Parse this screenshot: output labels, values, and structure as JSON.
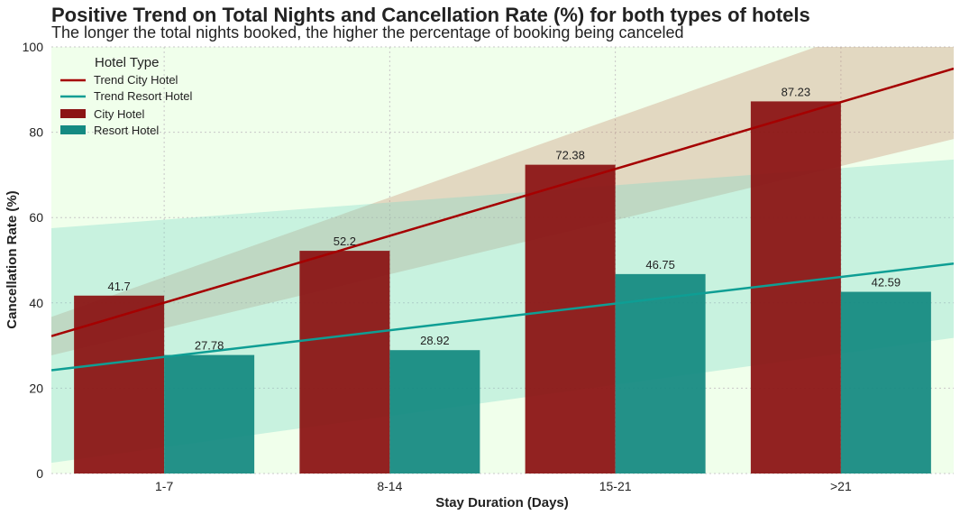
{
  "chart_data": {
    "type": "bar",
    "title": "Positive Trend on Total Nights and Cancellation Rate (%) for both types of hotels",
    "subtitle": "The longer the total nights booked, the higher the percentage of booking being canceled",
    "xlabel": "Stay Duration (Days)",
    "ylabel": "Cancellation Rate (%)",
    "categories": [
      "1-7",
      "8-14",
      "15-21",
      ">21"
    ],
    "ylim": [
      0,
      100
    ],
    "yticks": [
      0,
      20,
      40,
      60,
      80,
      100
    ],
    "grid": true,
    "legend_position": "top-left",
    "legend_title": "Hotel Type",
    "series": [
      {
        "name": "City Hotel",
        "color": "#8B1414",
        "values": [
          41.7,
          52.2,
          72.38,
          87.23
        ],
        "labels": [
          "41.7",
          "52.2",
          "72.38",
          "87.23"
        ]
      },
      {
        "name": "Resort Hotel",
        "color": "#158A82",
        "values": [
          27.78,
          28.92,
          46.75,
          42.59
        ],
        "labels": [
          "27.78",
          "28.92",
          "46.75",
          "42.59"
        ]
      }
    ],
    "trends": [
      {
        "name": "Trend City Hotel",
        "color": "#A50000",
        "band_color": "#C98F72",
        "start": 32.2,
        "end": 94.9,
        "band_start": [
          27.7,
          36.7
        ],
        "band_end": [
          78.4,
          111.4
        ]
      },
      {
        "name": "Trend Resort Hotel",
        "color": "#0E9E94",
        "band_color": "#7FD9C8",
        "start": 24.2,
        "end": 49.2,
        "band_start": [
          2.5,
          57.5
        ],
        "band_end": [
          31.8,
          73.6
        ]
      }
    ],
    "background_color": "#F0FFEB"
  }
}
